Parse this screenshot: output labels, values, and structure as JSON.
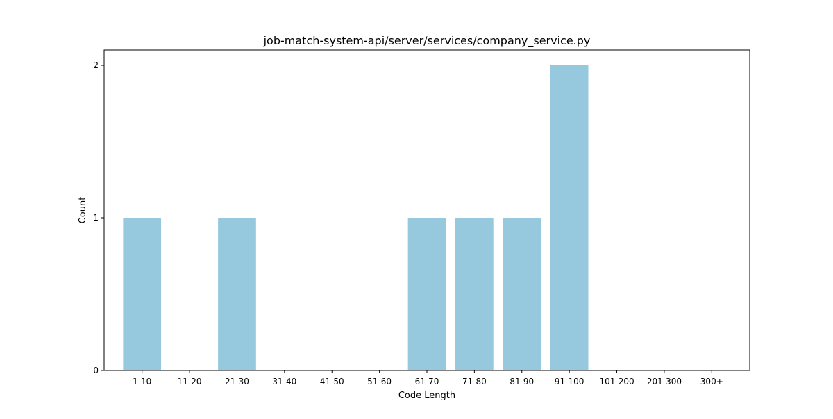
{
  "chart_data": {
    "type": "bar",
    "title": "job-match-system-api/server/services/company_service.py",
    "xlabel": "Code Length",
    "ylabel": "Count",
    "categories": [
      "1-10",
      "11-20",
      "21-30",
      "31-40",
      "41-50",
      "51-60",
      "61-70",
      "71-80",
      "81-90",
      "91-100",
      "101-200",
      "201-300",
      "300+"
    ],
    "values": [
      1,
      0,
      1,
      0,
      0,
      0,
      1,
      1,
      1,
      2,
      0,
      0,
      0
    ],
    "ylim": [
      0,
      2.1
    ],
    "yticks": [
      0,
      1,
      2
    ],
    "grid": false,
    "legend": "none",
    "bar_color": "#96c9de"
  }
}
